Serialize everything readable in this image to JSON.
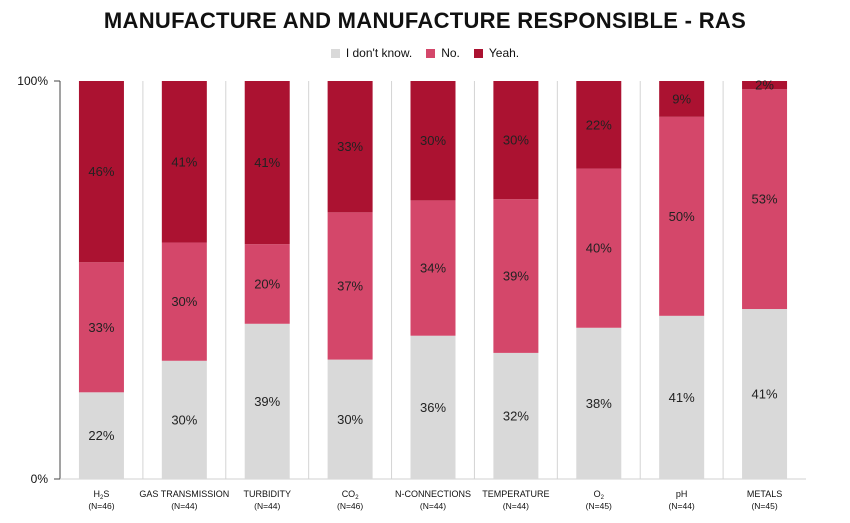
{
  "chart_data": {
    "type": "bar",
    "stacked": true,
    "normalized": true,
    "title": "MANUFACTURE AND MANUFACTURE RESPONSIBLE - RAS",
    "ylim": [
      0,
      100
    ],
    "y_ticks": [
      "0%",
      "100%"
    ],
    "legend_placement": "top-center",
    "grid": false,
    "categories": [
      {
        "name": "H",
        "sub": "2",
        "tail": "S",
        "n": "(N=46)"
      },
      {
        "name": "GAS TRANSMISSION",
        "sub": "",
        "tail": "",
        "n": "(N=44)"
      },
      {
        "name": "TURBIDITY",
        "sub": "",
        "tail": "",
        "n": "(N=44)"
      },
      {
        "name": "CO",
        "sub": "2",
        "tail": "",
        "n": "(N=46)"
      },
      {
        "name": "N-CONNECTIONS",
        "sub": "",
        "tail": "",
        "n": "(N=44)"
      },
      {
        "name": "TEMPERATURE",
        "sub": "",
        "tail": "",
        "n": "(N=44)"
      },
      {
        "name": "O",
        "sub": "2",
        "tail": "",
        "n": "(N=45)"
      },
      {
        "name": "pH",
        "sub": "",
        "tail": "",
        "n": "(N=44)"
      },
      {
        "name": "METALS",
        "sub": "",
        "tail": "",
        "n": "(N=45)"
      }
    ],
    "series": [
      {
        "name": "I don't know.",
        "color": "#d9d9d9",
        "values": [
          22,
          30,
          39,
          30,
          36,
          32,
          38,
          41,
          41
        ],
        "labels": [
          "22%",
          "30%",
          "39%",
          "30%",
          "36%",
          "32%",
          "38%",
          "41%",
          "41%"
        ]
      },
      {
        "name": "No.",
        "color": "#d4476a",
        "values": [
          33,
          30,
          20,
          37,
          34,
          39,
          40,
          50,
          53
        ],
        "labels": [
          "33%",
          "30%",
          "20%",
          "37%",
          "34%",
          "39%",
          "40%",
          "50%",
          "53%"
        ]
      },
      {
        "name": "Yeah.",
        "color": "#ab1231",
        "values": [
          46,
          41,
          41,
          33,
          30,
          30,
          22,
          9,
          2
        ],
        "labels": [
          "46%",
          "41%",
          "41%",
          "33%",
          "30%",
          "30%",
          "22%",
          "9%",
          "2%"
        ]
      }
    ]
  }
}
